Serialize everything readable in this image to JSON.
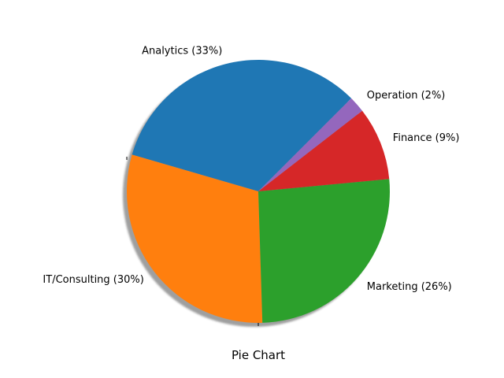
{
  "chart_data": {
    "type": "pie",
    "xlabel": "Pie Chart",
    "slices": [
      {
        "label": "Analytics (33%)",
        "value": 33,
        "color": "#1f77b4"
      },
      {
        "label": "IT/Consulting (30%)",
        "value": 30,
        "color": "#ff7f0e"
      },
      {
        "label": "Marketing (26%)",
        "value": 26,
        "color": "#2ca02c"
      },
      {
        "label": "Finance (9%)",
        "value": 9,
        "color": "#d62728"
      },
      {
        "label": "Operation (2%)",
        "value": 2,
        "color": "#9467bd"
      }
    ],
    "start_angle_deg": 45,
    "direction": "counterclockwise",
    "shadow": true
  }
}
